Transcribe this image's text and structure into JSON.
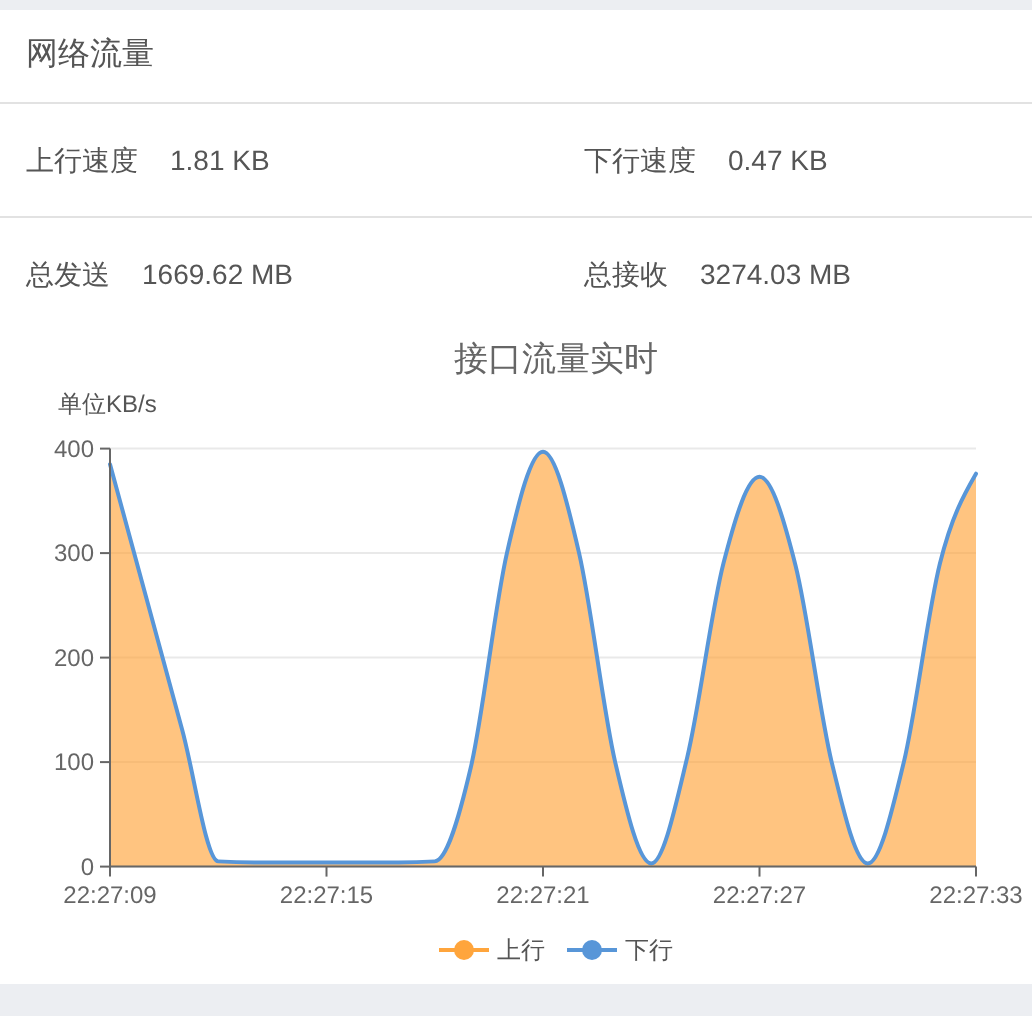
{
  "chart_data": [
    {
      "type": "other",
      "title": "网络流量",
      "annotations": [
        "上行速度",
        "1.81 KB",
        "下行速度",
        "0.47 KB",
        "总发送",
        "1669.62 MB",
        "总接收",
        "3274.03 MB"
      ]
    },
    {
      "type": "area",
      "title": "接口流量实时",
      "ylabel": "单位KB/s",
      "categories": [
        "22:27:09",
        null,
        null,
        null,
        null,
        null,
        "22:27:15",
        null,
        null,
        null,
        null,
        null,
        "22:27:21",
        null,
        null,
        null,
        null,
        null,
        "22:27:27",
        null,
        null,
        null,
        null,
        null,
        "22:27:33"
      ],
      "ylim": [
        0,
        400
      ],
      "yticks": [
        0,
        100,
        200,
        300,
        400
      ],
      "grid": "y",
      "legend": "bottom",
      "series": [
        {
          "name": "上行",
          "color": "#ffa53c",
          "values": [
            385,
            258,
            131,
            5,
            4,
            4,
            4,
            4,
            4,
            5,
            95,
            300,
            397,
            300,
            100,
            3,
            105,
            290,
            373,
            288,
            100,
            3,
            100,
            290,
            376
          ]
        },
        {
          "name": "下行",
          "type": "line",
          "color": "#5896d8",
          "values": [
            385,
            258,
            131,
            5,
            4,
            4,
            4,
            4,
            4,
            5,
            95,
            300,
            397,
            300,
            100,
            3,
            105,
            290,
            373,
            288,
            100,
            3,
            100,
            290,
            376
          ]
        }
      ]
    }
  ]
}
